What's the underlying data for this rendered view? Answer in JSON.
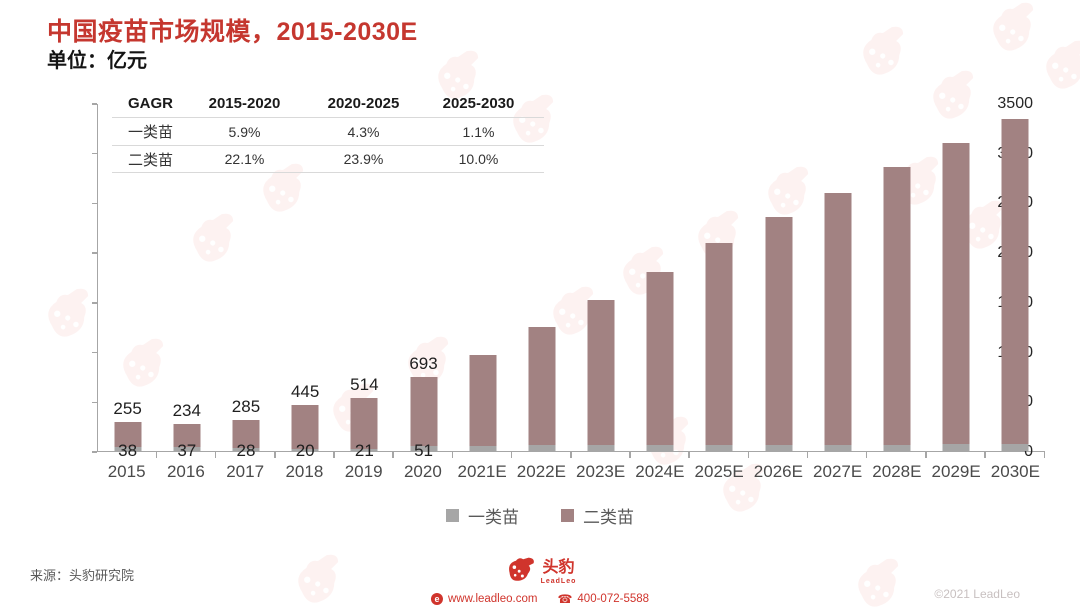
{
  "header": {
    "title": "中国疫苗市场规模，2015-2030E",
    "title_color": "#c5372f",
    "unit_label": "单位：亿元"
  },
  "cagr_table": {
    "headers": [
      "GAGR",
      "2015-2020",
      "2020-2025",
      "2025-2030"
    ],
    "rows": [
      {
        "label": "一类苗",
        "values": [
          "5.9%",
          "4.3%",
          "1.1%"
        ]
      },
      {
        "label": "二类苗",
        "values": [
          "22.1%",
          "23.9%",
          "10.0%"
        ]
      }
    ]
  },
  "chart_data": {
    "type": "bar",
    "stacked": true,
    "title": "中国疫苗市场规模，2015-2030E",
    "ylabel": "单位：亿元",
    "categories": [
      "2015",
      "2016",
      "2017",
      "2018",
      "2019",
      "2020",
      "2021E",
      "2022E",
      "2023E",
      "2024E",
      "2025E",
      "2026E",
      "2027E",
      "2028E",
      "2029E",
      "2030E"
    ],
    "series": [
      {
        "name": "一类苗",
        "color": "#a6a6a6",
        "values": [
          38,
          37,
          28,
          20,
          21,
          51,
          53,
          56,
          58,
          61,
          63,
          64,
          64,
          65,
          66,
          66
        ]
      },
      {
        "name": "二类苗",
        "color": "#a28282",
        "values": [
          255,
          234,
          285,
          445,
          514,
          693,
          917,
          1194,
          1457,
          1739,
          2027,
          2286,
          2536,
          2795,
          3034,
          3274
        ]
      }
    ],
    "visible_value_labels": {
      "一类苗": [
        "38",
        "37",
        "28",
        "20",
        "21",
        "51"
      ],
      "二类苗": [
        "255",
        "234",
        "285",
        "445",
        "514",
        "693"
      ]
    },
    "labels_shown_count": 6,
    "ylim": [
      0,
      3500
    ],
    "yticks": [
      0,
      500,
      1000,
      1500,
      2000,
      2500,
      3000,
      3500
    ],
    "grid": false,
    "legend_position": "bottom"
  },
  "legend": [
    {
      "label": "一类苗",
      "color": "#a6a6a6"
    },
    {
      "label": "二类苗",
      "color": "#a28282"
    }
  ],
  "footer": {
    "source": "来源：头豹研究院",
    "brand": "头豹",
    "brand_sub": "LeadLeo",
    "website": "www.leadleo.com",
    "website_icon": "e",
    "phone": "400-072-5588",
    "copyright": "©2021 LeadLeo",
    "brand_color": "#d0342c"
  }
}
